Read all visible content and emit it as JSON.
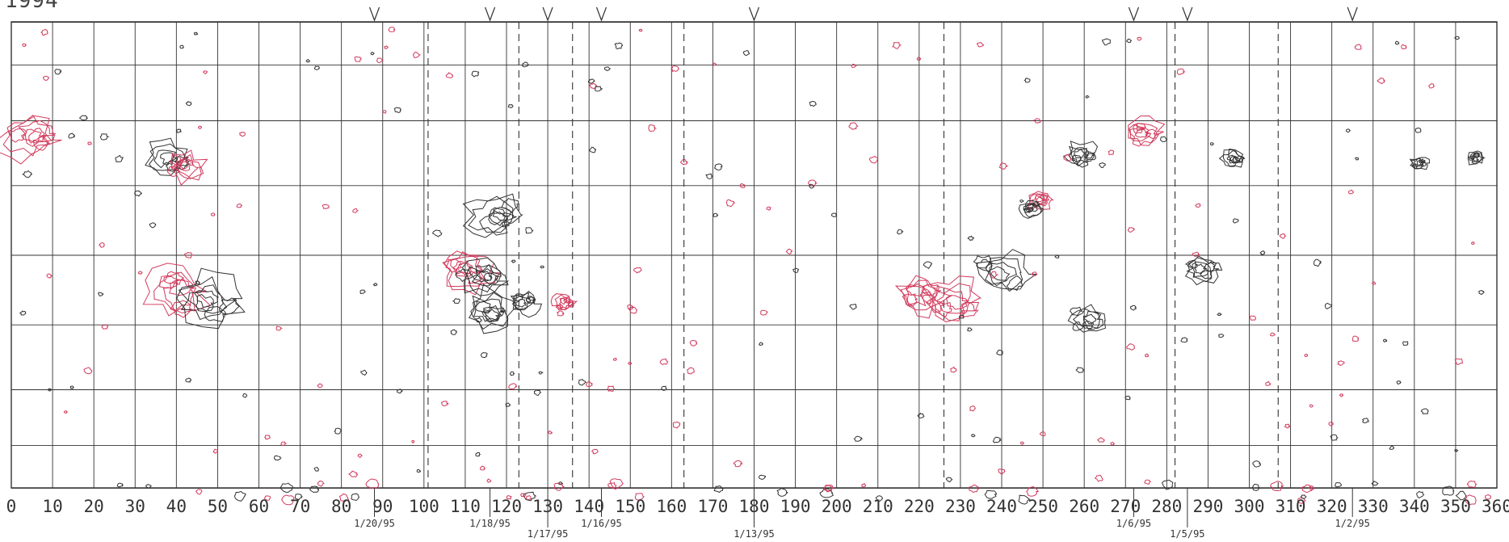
{
  "header": {
    "year_label": "1994"
  },
  "chart_data": {
    "type": "contour-map",
    "xlabel": "",
    "ylabel": "",
    "xlim": [
      0,
      360
    ],
    "x_ticks": [
      "0",
      "10",
      "20",
      "30",
      "40",
      "50",
      "60",
      "70",
      "80",
      "90",
      "100",
      "110",
      "120",
      "130",
      "140",
      "150",
      "160",
      "170",
      "180",
      "190",
      "200",
      "210",
      "220",
      "230",
      "240",
      "250",
      "260",
      "270",
      "280",
      "290",
      "300",
      "310",
      "320",
      "330",
      "340",
      "350",
      "360"
    ],
    "latitude_lines": [
      60,
      45,
      30,
      15,
      0,
      -15,
      -30,
      -45,
      -60
    ],
    "v_markers": [
      88,
      116,
      130,
      143,
      180,
      272,
      285,
      325
    ],
    "day_boundaries": [
      101,
      123,
      136,
      163,
      226,
      282,
      307
    ],
    "date_labels": [
      {
        "x": 88,
        "text": "1/20/95"
      },
      {
        "x": 116,
        "text": "1/18/95"
      },
      {
        "x": 130,
        "text": "1/17/95"
      },
      {
        "x": 143,
        "text": "1/16/95"
      },
      {
        "x": 180,
        "text": "1/13/95"
      },
      {
        "x": 272,
        "text": "1/6/95"
      },
      {
        "x": 285,
        "text": "1/5/95"
      },
      {
        "x": 325,
        "text": "1/2/95"
      }
    ],
    "colors": {
      "positive_polarity": "#333333",
      "negative_polarity": "#d23a5c",
      "grid": "#333333"
    },
    "regions": [
      {
        "polarity": "negative",
        "lon": 5,
        "lat": 26,
        "size": 1.6
      },
      {
        "polarity": "positive",
        "lon": 38,
        "lat": 21,
        "size": 1.2
      },
      {
        "polarity": "negative",
        "lon": 42,
        "lat": 19,
        "size": 1.1
      },
      {
        "polarity": "negative",
        "lon": 40,
        "lat": -8,
        "size": 1.8
      },
      {
        "polarity": "positive",
        "lon": 48,
        "lat": -10,
        "size": 1.8
      },
      {
        "polarity": "negative",
        "lon": 110,
        "lat": -3,
        "size": 1.5
      },
      {
        "polarity": "positive",
        "lon": 117,
        "lat": 8,
        "size": 1.6
      },
      {
        "polarity": "positive",
        "lon": 114,
        "lat": -5,
        "size": 1.4
      },
      {
        "polarity": "positive",
        "lon": 116,
        "lat": -12,
        "size": 1.5
      },
      {
        "polarity": "positive",
        "lon": 124,
        "lat": -10,
        "size": 0.8
      },
      {
        "polarity": "negative",
        "lon": 134,
        "lat": -10,
        "size": 0.6
      },
      {
        "polarity": "negative",
        "lon": 220,
        "lat": -8,
        "size": 1.4
      },
      {
        "polarity": "negative",
        "lon": 228,
        "lat": -10,
        "size": 1.6
      },
      {
        "polarity": "positive",
        "lon": 240,
        "lat": -4,
        "size": 1.5
      },
      {
        "polarity": "negative",
        "lon": 249,
        "lat": 12,
        "size": 0.7
      },
      {
        "polarity": "positive",
        "lon": 247,
        "lat": 10,
        "size": 0.6
      },
      {
        "polarity": "positive",
        "lon": 261,
        "lat": -14,
        "size": 1.0
      },
      {
        "polarity": "positive",
        "lon": 259,
        "lat": 22,
        "size": 0.9
      },
      {
        "polarity": "negative",
        "lon": 274,
        "lat": 27,
        "size": 1.0
      },
      {
        "polarity": "positive",
        "lon": 288,
        "lat": -3,
        "size": 1.0
      },
      {
        "polarity": "positive",
        "lon": 296,
        "lat": 21,
        "size": 0.7
      },
      {
        "polarity": "positive",
        "lon": 341,
        "lat": 20,
        "size": 0.5
      },
      {
        "polarity": "positive",
        "lon": 355,
        "lat": 21,
        "size": 0.5
      }
    ]
  }
}
